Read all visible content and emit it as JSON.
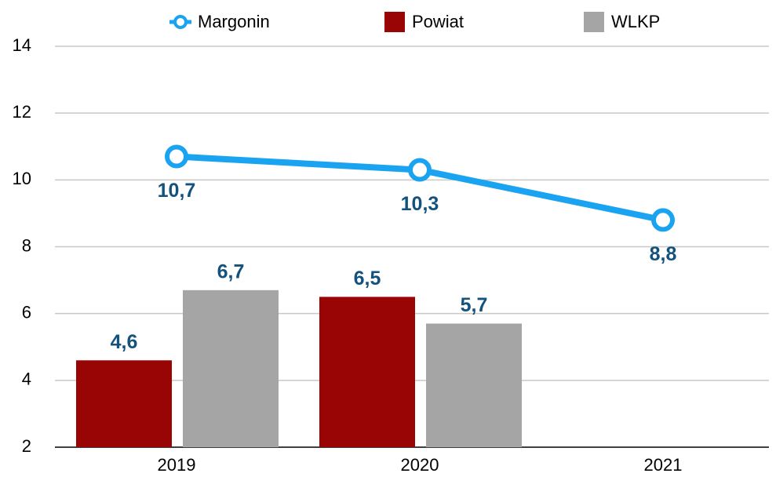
{
  "chart_data": {
    "type": "bar-line",
    "categories": [
      "2019",
      "2020",
      "2021"
    ],
    "series": [
      {
        "name": "Margonin",
        "type": "line",
        "color": "#1aa3f0",
        "values": [
          10.7,
          10.3,
          8.8
        ],
        "value_labels": [
          "10,7",
          "10,3",
          "8,8"
        ]
      },
      {
        "name": "Powiat",
        "type": "bar",
        "color": "#990505",
        "values": [
          4.6,
          6.5,
          null
        ],
        "value_labels": [
          "4,6",
          "6,5",
          null
        ]
      },
      {
        "name": "WLKP",
        "type": "bar",
        "color": "#a5a5a5",
        "values": [
          6.7,
          5.7,
          null
        ],
        "value_labels": [
          "6,7",
          "5,7",
          null
        ]
      }
    ],
    "ylim": [
      2,
      14
    ],
    "yticks": [
      2,
      4,
      6,
      8,
      10,
      12,
      14
    ],
    "grid": true,
    "legend": "top"
  }
}
